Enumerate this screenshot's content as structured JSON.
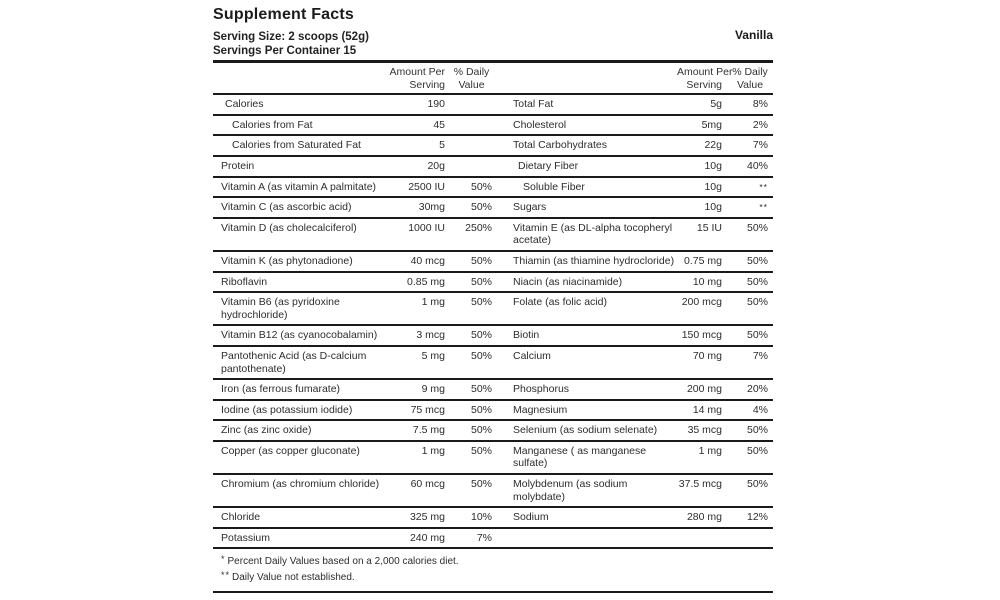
{
  "label": {
    "title": "Supplement Facts",
    "serving_size": "Serving Size: 2 scoops (52g)",
    "servings_per_container": "Servings Per Container 15",
    "flavor": "Vanilla"
  },
  "header": {
    "amount_line1": "Amount Per",
    "amount_line2": "Serving",
    "dv_line1": "% Daily",
    "dv_line2": "Value"
  },
  "table": {
    "rows": [
      {
        "left": {
          "label": "Calories",
          "amount": "190",
          "dv": "",
          "indent": 1
        },
        "right": {
          "label": "Total Fat",
          "amount": "5g",
          "dv": "8%",
          "indent": 0
        }
      },
      {
        "left": {
          "label": "Calories from Fat",
          "amount": "45",
          "dv": "",
          "indent": 2
        },
        "right": {
          "label": "Cholesterol",
          "amount": "5mg",
          "dv": "2%",
          "indent": 0
        }
      },
      {
        "left": {
          "label": "Calories from Saturated Fat",
          "amount": "5",
          "dv": "",
          "indent": 2
        },
        "right": {
          "label": "Total Carbohydrates",
          "amount": "22g",
          "dv": "7%",
          "indent": 0
        }
      },
      {
        "left": {
          "label": "Protein",
          "amount": "20g",
          "dv": "",
          "indent": 0
        },
        "right": {
          "label": "Dietary Fiber",
          "amount": "10g",
          "dv": "40%",
          "indent": 1
        }
      },
      {
        "left": {
          "label": "Vitamin A (as vitamin A palmitate)",
          "amount": "2500 IU",
          "dv": "50%",
          "indent": 0
        },
        "right": {
          "label": "Soluble Fiber",
          "amount": "10g",
          "dv": "**",
          "indent": 2
        }
      },
      {
        "left": {
          "label": "Vitamin C (as ascorbic acid)",
          "amount": "30mg",
          "dv": "50%",
          "indent": 0
        },
        "right": {
          "label": "Sugars",
          "amount": "10g",
          "dv": "**",
          "indent": 0
        }
      },
      {
        "left": {
          "label": "Vitamin D (as cholecalciferol)",
          "amount": "1000 IU",
          "dv": "250%",
          "indent": 0
        },
        "right": {
          "label": "Vitamin E (as DL-alpha tocopheryl acetate)",
          "amount": "15 IU",
          "dv": "50%",
          "indent": 0
        }
      },
      {
        "left": {
          "label": "Vitamin K (as phytonadione)",
          "amount": "40 mcg",
          "dv": "50%",
          "indent": 0
        },
        "right": {
          "label": "Thiamin (as thiamine hydrocloride)",
          "amount": "0.75 mg",
          "dv": "50%",
          "indent": 0
        }
      },
      {
        "left": {
          "label": "Riboflavin",
          "amount": "0.85 mg",
          "dv": "50%",
          "indent": 0
        },
        "right": {
          "label": "Niacin (as niacinamide)",
          "amount": "10 mg",
          "dv": "50%",
          "indent": 0
        }
      },
      {
        "left": {
          "label": "Vitamin B6 (as pyridoxine hydrochloride)",
          "amount": "1 mg",
          "dv": "50%",
          "indent": 0
        },
        "right": {
          "label": "Folate (as folic acid)",
          "amount": "200 mcg",
          "dv": "50%",
          "indent": 0
        }
      },
      {
        "left": {
          "label": "Vitamin B12 (as cyanocobalamin)",
          "amount": "3 mcg",
          "dv": "50%",
          "indent": 0
        },
        "right": {
          "label": "Biotin",
          "amount": "150 mcg",
          "dv": "50%",
          "indent": 0
        }
      },
      {
        "left": {
          "label": "Pantothenic Acid (as D-calcium pantothenate)",
          "amount": "5 mg",
          "dv": "50%",
          "indent": 0
        },
        "right": {
          "label": "Calcium",
          "amount": "70 mg",
          "dv": "7%",
          "indent": 0
        }
      },
      {
        "left": {
          "label": "Iron (as ferrous fumarate)",
          "amount": "9 mg",
          "dv": "50%",
          "indent": 0
        },
        "right": {
          "label": "Phosphorus",
          "amount": "200 mg",
          "dv": "20%",
          "indent": 0
        }
      },
      {
        "left": {
          "label": "Iodine (as potassium iodide)",
          "amount": "75 mcg",
          "dv": "50%",
          "indent": 0
        },
        "right": {
          "label": "Magnesium",
          "amount": "14 mg",
          "dv": "4%",
          "indent": 0
        }
      },
      {
        "left": {
          "label": "Zinc (as zinc oxide)",
          "amount": "7.5 mg",
          "dv": "50%",
          "indent": 0
        },
        "right": {
          "label": "Selenium (as sodium selenate)",
          "amount": "35 mcg",
          "dv": "50%",
          "indent": 0
        }
      },
      {
        "left": {
          "label": "Copper (as copper gluconate)",
          "amount": "1 mg",
          "dv": "50%",
          "indent": 0
        },
        "right": {
          "label": "Manganese ( as manganese sulfate)",
          "amount": "1 mg",
          "dv": "50%",
          "indent": 0
        }
      },
      {
        "left": {
          "label": "Chromium (as chromium chloride)",
          "amount": "60 mcg",
          "dv": "50%",
          "indent": 0
        },
        "right": {
          "label": "Molybdenum (as sodium molybdate)",
          "amount": "37.5 mcg",
          "dv": "50%",
          "indent": 0
        }
      },
      {
        "left": {
          "label": "Chloride",
          "amount": "325 mg",
          "dv": "10%",
          "indent": 0
        },
        "right": {
          "label": "Sodium",
          "amount": "280 mg",
          "dv": "12%",
          "indent": 0
        }
      },
      {
        "left": {
          "label": "Potassium",
          "amount": "240 mg",
          "dv": "7%",
          "indent": 0
        },
        "right": {
          "label": "",
          "amount": "",
          "dv": "",
          "indent": 0
        }
      }
    ]
  },
  "footnotes": [
    {
      "marker": "*",
      "text": "Percent Daily Values based on a 2,000 calories diet."
    },
    {
      "marker": "**",
      "text": "Daily Value not established."
    }
  ],
  "colors": {
    "text": "#2d2d2d",
    "rule": "#1a1a1a",
    "background": "#ffffff"
  }
}
